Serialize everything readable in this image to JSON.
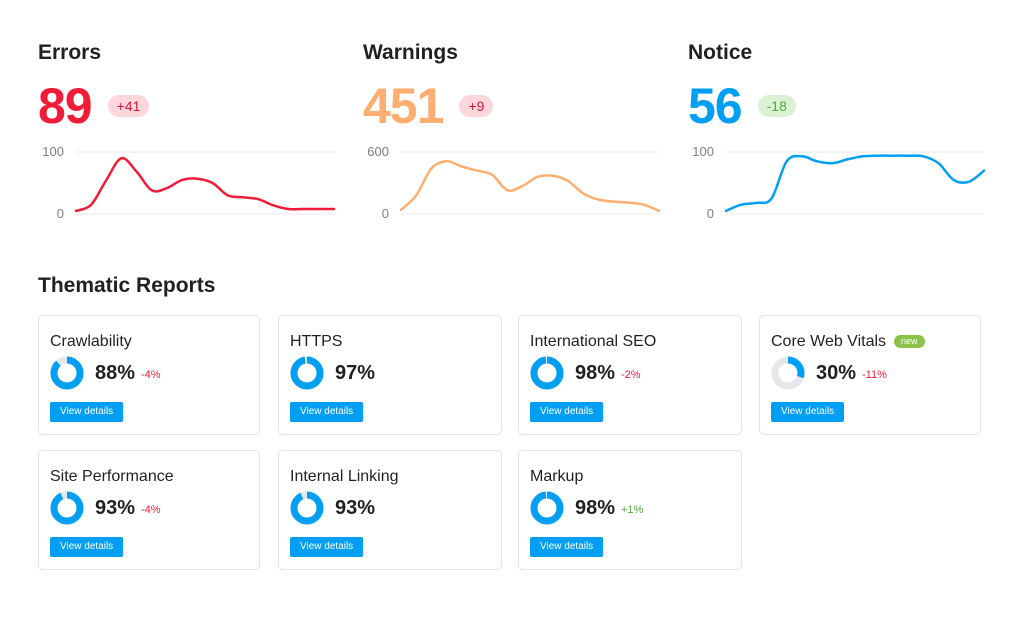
{
  "metrics": [
    {
      "id": "errors",
      "title": "Errors",
      "value": "89",
      "badge": "+41",
      "color": "#f11c37",
      "badge_bg": "#ffd6dc",
      "badge_fg": "#d4183a",
      "y_ticks": [
        "100",
        "0"
      ],
      "chart_data": {
        "type": "line",
        "ylim": [
          0,
          100
        ],
        "x": [
          0,
          1,
          2,
          3,
          4,
          5,
          6,
          7,
          8,
          9,
          10,
          11,
          12,
          13,
          14,
          15,
          16,
          17
        ],
        "values": [
          5,
          15,
          55,
          90,
          68,
          38,
          42,
          55,
          57,
          50,
          30,
          27,
          24,
          14,
          8,
          8,
          8,
          8
        ]
      }
    },
    {
      "id": "warnings",
      "title": "Warnings",
      "value": "451",
      "badge": "+9",
      "color": "#ffae72",
      "badge_bg": "#ffd6dc",
      "badge_fg": "#d4183a",
      "y_ticks": [
        "600",
        "0"
      ],
      "chart_data": {
        "type": "line",
        "ylim": [
          0,
          600
        ],
        "x": [
          0,
          1,
          2,
          3,
          4,
          5,
          6,
          7,
          8,
          9,
          10,
          11,
          12,
          13,
          14,
          15,
          16,
          17
        ],
        "values": [
          40,
          180,
          440,
          510,
          460,
          420,
          380,
          230,
          270,
          360,
          370,
          320,
          200,
          140,
          120,
          110,
          90,
          30
        ]
      }
    },
    {
      "id": "notice",
      "title": "Notice",
      "value": "56",
      "badge": "-18",
      "color": "#009ff3",
      "badge_bg": "#dbf1d3",
      "badge_fg": "#54a83a",
      "y_ticks": [
        "100",
        "0"
      ],
      "chart_data": {
        "type": "line",
        "ylim": [
          0,
          100
        ],
        "x": [
          0,
          1,
          2,
          3,
          4,
          5,
          6,
          7,
          8,
          9,
          10,
          11,
          12,
          13,
          14,
          15,
          16,
          17
        ],
        "values": [
          5,
          15,
          18,
          25,
          85,
          93,
          85,
          82,
          88,
          93,
          94,
          94,
          94,
          93,
          82,
          55,
          52,
          70
        ]
      }
    }
  ],
  "thematic": {
    "title": "Thematic Reports",
    "button_label": "View details",
    "cards": [
      {
        "id": "crawlability",
        "title": "Crawlability",
        "percent": "88%",
        "value": 88,
        "delta": "-4%",
        "delta_color": "#f11c37",
        "new": ""
      },
      {
        "id": "https",
        "title": "HTTPS",
        "percent": "97%",
        "value": 97,
        "delta": "",
        "delta_color": "#f11c37",
        "new": ""
      },
      {
        "id": "international-seo",
        "title": "International SEO",
        "percent": "98%",
        "value": 98,
        "delta": "-2%",
        "delta_color": "#f11c37",
        "new": ""
      },
      {
        "id": "core-web-vitals",
        "title": "Core Web Vitals",
        "percent": "30%",
        "value": 30,
        "delta": "-11%",
        "delta_color": "#f11c37",
        "new": "new"
      },
      {
        "id": "site-performance",
        "title": "Site Performance",
        "percent": "93%",
        "value": 93,
        "delta": "-4%",
        "delta_color": "#f11c37",
        "new": ""
      },
      {
        "id": "internal-linking",
        "title": "Internal Linking",
        "percent": "93%",
        "value": 93,
        "delta": "",
        "delta_color": "#f11c37",
        "new": ""
      },
      {
        "id": "markup",
        "title": "Markup",
        "percent": "98%",
        "value": 98,
        "delta": "+1%",
        "delta_color": "#54a83a",
        "new": ""
      }
    ]
  },
  "colors": {
    "accent": "#009ff3",
    "ring_track": "#e6e7eb",
    "gridline": "#e8e9ed"
  }
}
